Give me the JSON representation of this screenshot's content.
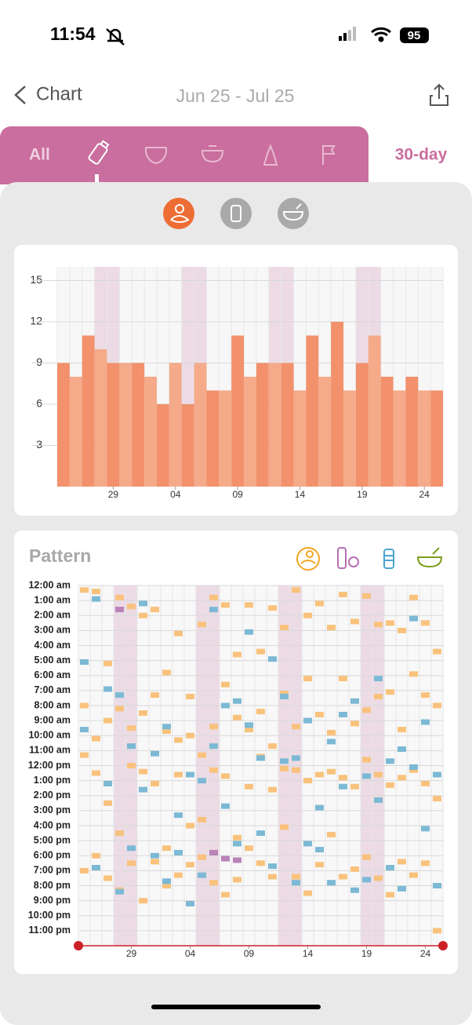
{
  "status_bar": {
    "time": "11:54",
    "battery": "95"
  },
  "nav": {
    "back": "Chart",
    "date_range": "Jun 25 - Jul 25"
  },
  "tabs": {
    "all": "All",
    "period": "30-day"
  },
  "chart_data": [
    {
      "type": "bar",
      "categories": [
        null,
        null,
        null,
        null,
        "29",
        null,
        null,
        null,
        null,
        "04",
        null,
        null,
        null,
        null,
        "09",
        null,
        null,
        null,
        null,
        "14",
        null,
        null,
        null,
        null,
        "19",
        null,
        null,
        null,
        null,
        "24",
        null
      ],
      "values": [
        9,
        8,
        11,
        10,
        9,
        9,
        9,
        8,
        6,
        9,
        6,
        9,
        7,
        7,
        11,
        8,
        9,
        9,
        9,
        7,
        11,
        8,
        12,
        7,
        9,
        11,
        8,
        7,
        8,
        7,
        7
      ],
      "colors": [
        "#f2916c",
        "#f5aa8a"
      ],
      "ylim": [
        0,
        16
      ],
      "yticks": [
        3,
        6,
        9,
        12,
        15
      ],
      "grid": true
    },
    {
      "type": "scatter",
      "title": "Pattern",
      "xlim": [
        -0.5,
        30.5
      ],
      "xticks": [
        {
          "value": 4,
          "label": "29"
        },
        {
          "value": 9,
          "label": "04"
        },
        {
          "value": 14,
          "label": "09"
        },
        {
          "value": 19,
          "label": "14"
        },
        {
          "value": 24,
          "label": "19"
        },
        {
          "value": 29,
          "label": "24"
        }
      ],
      "ylim": [
        24,
        0
      ],
      "yticks": [
        {
          "value": 0,
          "label": "12:00 am"
        },
        {
          "value": 1,
          "label": "1:00 am"
        },
        {
          "value": 2,
          "label": "2:00 am"
        },
        {
          "value": 3,
          "label": "3:00 am"
        },
        {
          "value": 4,
          "label": "4:00 am"
        },
        {
          "value": 5,
          "label": "5:00 am"
        },
        {
          "value": 6,
          "label": "6:00 am"
        },
        {
          "value": 7,
          "label": "7:00 am"
        },
        {
          "value": 8,
          "label": "8:00 am"
        },
        {
          "value": 9,
          "label": "9:00 am"
        },
        {
          "value": 10,
          "label": "10:00 am"
        },
        {
          "value": 11,
          "label": "11:00 am"
        },
        {
          "value": 12,
          "label": "12:00 pm"
        },
        {
          "value": 13,
          "label": "1:00 pm"
        },
        {
          "value": 14,
          "label": "2:00 pm"
        },
        {
          "value": 15,
          "label": "3:00 pm"
        },
        {
          "value": 16,
          "label": "4:00 pm"
        },
        {
          "value": 17,
          "label": "5:00 pm"
        },
        {
          "value": 18,
          "label": "6:00 pm"
        },
        {
          "value": 19,
          "label": "7:00 pm"
        },
        {
          "value": 20,
          "label": "8:00 pm"
        },
        {
          "value": 21,
          "label": "9:00 pm"
        },
        {
          "value": 22,
          "label": "10:00 pm"
        },
        {
          "value": 23,
          "label": "11:00 pm"
        }
      ],
      "grid": true,
      "series": [
        {
          "color": "#f9c27c",
          "x": [
            0,
            0,
            0,
            0,
            1,
            1,
            1,
            1,
            2,
            2,
            2,
            2,
            3,
            3,
            3,
            3,
            4,
            4,
            4,
            4,
            5,
            5,
            5,
            5,
            6,
            6,
            6,
            6,
            7,
            7,
            7,
            7,
            8,
            8,
            8,
            8,
            9,
            9,
            9,
            9,
            10,
            10,
            10,
            10,
            11,
            11,
            11,
            11,
            12,
            12,
            12,
            12,
            13,
            13,
            13,
            13,
            14,
            14,
            14,
            14,
            15,
            15,
            15,
            15,
            16,
            16,
            16,
            16,
            17,
            17,
            17,
            17,
            18,
            18,
            18,
            18,
            19,
            19,
            19,
            19,
            20,
            20,
            20,
            20,
            21,
            21,
            21,
            21,
            22,
            22,
            22,
            22,
            23,
            23,
            23,
            23,
            24,
            24,
            24,
            24,
            25,
            25,
            25,
            25,
            26,
            26,
            26,
            26,
            27,
            27,
            27,
            27,
            28,
            28,
            28,
            28,
            29,
            29,
            29,
            29,
            30,
            30,
            30,
            30
          ],
          "values": [
            0.3,
            8,
            11.3,
            19,
            0.4,
            10.2,
            12.5,
            18,
            5.2,
            9,
            14.5,
            19.5,
            0.8,
            8.2,
            16.5,
            20.3,
            1.4,
            9.5,
            12,
            18.5,
            2,
            8.5,
            12.4,
            21,
            1.6,
            7.3,
            13.2,
            18.4,
            5.8,
            9.7,
            17.5,
            20,
            3.2,
            10.3,
            12.6,
            19.3,
            7.4,
            10,
            16,
            18.6,
            2.6,
            11.3,
            15.6,
            18.1,
            0.8,
            9.4,
            12.3,
            19.8,
            1.3,
            6.6,
            12.7,
            20.6,
            4.6,
            8.8,
            16.8,
            19.6,
            1.3,
            9.6,
            13.4,
            17.5,
            4.4,
            8.4,
            11.4,
            18.5,
            1.5,
            10.7,
            13.6,
            19.4,
            2.8,
            7.2,
            12.2,
            16.1,
            0.3,
            9.4,
            12.3,
            19.4,
            2,
            6.2,
            13,
            20.5,
            1.2,
            8.6,
            12.6,
            18.6,
            2.8,
            9.8,
            12.4,
            16.6,
            0.6,
            6.2,
            12.8,
            19.4,
            2.4,
            9.2,
            13.4,
            18.9,
            0.7,
            8.3,
            11.6,
            18.1,
            2.6,
            7.4,
            12.6,
            19.5,
            2.5,
            7.1,
            13.3,
            20.6,
            3,
            9.6,
            12.8,
            18.4,
            0.8,
            5.9,
            12.3,
            19.3,
            2.5,
            7.3,
            13.2,
            18.5,
            4.4,
            8,
            14.2,
            23
          ]
        },
        {
          "color": "#7cb9d5",
          "x": [
            0,
            0,
            1,
            1,
            2,
            2,
            3,
            3,
            4,
            4,
            5,
            5,
            6,
            6,
            7,
            7,
            8,
            8,
            9,
            9,
            10,
            10,
            11,
            11,
            12,
            12,
            13,
            13,
            14,
            14,
            15,
            15,
            16,
            16,
            17,
            17,
            18,
            18,
            19,
            19,
            20,
            20,
            21,
            21,
            22,
            22,
            23,
            23,
            24,
            24,
            25,
            25,
            26,
            26,
            27,
            27,
            28,
            28,
            29,
            29,
            30,
            30
          ],
          "values": [
            5.1,
            9.6,
            0.9,
            18.8,
            6.9,
            13.2,
            7.3,
            20.4,
            10.7,
            17.5,
            1.2,
            13.6,
            11.2,
            18,
            9.4,
            19.7,
            15.3,
            17.8,
            12.6,
            21.2,
            13,
            19.3,
            1.6,
            10.7,
            8,
            14.7,
            7.7,
            17.2,
            3.1,
            9.3,
            11.5,
            16.5,
            4.9,
            18.7,
            7.4,
            11.7,
            11.5,
            19.8,
            9,
            17.2,
            14.8,
            17.6,
            10.4,
            19.8,
            8.6,
            13.4,
            7.7,
            20.3,
            12.7,
            19.6,
            6.2,
            14.3,
            11.7,
            18.8,
            10.9,
            20.2,
            2.2,
            12.1,
            9.1,
            16.2,
            12.6,
            20
          ]
        },
        {
          "color": "#b982b9",
          "x": [
            3,
            11,
            12,
            13
          ],
          "values": [
            1.6,
            17.8,
            18.2,
            18.3
          ]
        }
      ]
    }
  ]
}
